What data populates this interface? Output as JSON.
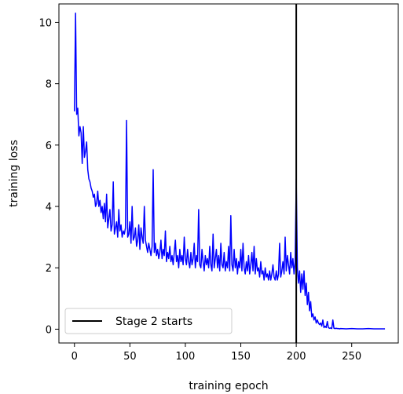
{
  "chart_data": {
    "type": "line",
    "xlabel": "training epoch",
    "ylabel": "training loss",
    "xlim": [
      -14,
      292
    ],
    "ylim": [
      -0.45,
      10.6
    ],
    "xticks": [
      0,
      50,
      100,
      150,
      200,
      250
    ],
    "yticks": [
      0,
      2,
      4,
      6,
      8,
      10
    ],
    "grid": false,
    "legend": {
      "placement": "lower-left",
      "entries": [
        {
          "label": "Stage 2 starts",
          "color": "#000000",
          "style": "line"
        }
      ]
    },
    "vertical_line": {
      "x": 200,
      "label": "Stage 2 starts",
      "color": "#000000"
    },
    "series": [
      {
        "color": "#0000ff",
        "points": [
          [
            0,
            7.1
          ],
          [
            1,
            10.3
          ],
          [
            2,
            7.0
          ],
          [
            3,
            7.2
          ],
          [
            4,
            6.3
          ],
          [
            5,
            6.6
          ],
          [
            6,
            6.4
          ],
          [
            7,
            5.4
          ],
          [
            8,
            6.6
          ],
          [
            9,
            5.6
          ],
          [
            10,
            5.8
          ],
          [
            11,
            6.1
          ],
          [
            12,
            5.2
          ],
          [
            13,
            4.9
          ],
          [
            14,
            4.8
          ],
          [
            15,
            4.6
          ],
          [
            16,
            4.5
          ],
          [
            17,
            4.3
          ],
          [
            18,
            4.4
          ],
          [
            19,
            4.0
          ],
          [
            20,
            4.1
          ],
          [
            21,
            4.5
          ],
          [
            22,
            4.0
          ],
          [
            23,
            4.2
          ],
          [
            24,
            3.8
          ],
          [
            25,
            4.0
          ],
          [
            26,
            3.6
          ],
          [
            27,
            4.1
          ],
          [
            28,
            3.5
          ],
          [
            29,
            4.4
          ],
          [
            30,
            3.3
          ],
          [
            31,
            3.6
          ],
          [
            32,
            3.9
          ],
          [
            33,
            3.2
          ],
          [
            34,
            3.4
          ],
          [
            35,
            4.8
          ],
          [
            36,
            3.1
          ],
          [
            37,
            3.3
          ],
          [
            38,
            3.5
          ],
          [
            39,
            3.0
          ],
          [
            40,
            3.9
          ],
          [
            41,
            3.2
          ],
          [
            42,
            3.4
          ],
          [
            43,
            3.0
          ],
          [
            44,
            3.2
          ],
          [
            45,
            3.1
          ],
          [
            46,
            3.3
          ],
          [
            47,
            6.8
          ],
          [
            48,
            3.0
          ],
          [
            49,
            3.1
          ],
          [
            50,
            3.5
          ],
          [
            51,
            2.8
          ],
          [
            52,
            4.0
          ],
          [
            53,
            2.9
          ],
          [
            54,
            3.0
          ],
          [
            55,
            3.3
          ],
          [
            56,
            2.7
          ],
          [
            57,
            2.9
          ],
          [
            58,
            3.4
          ],
          [
            59,
            2.6
          ],
          [
            60,
            3.3
          ],
          [
            61,
            3.0
          ],
          [
            62,
            2.8
          ],
          [
            63,
            4.0
          ],
          [
            64,
            2.9
          ],
          [
            65,
            2.7
          ],
          [
            66,
            2.5
          ],
          [
            67,
            2.8
          ],
          [
            68,
            2.6
          ],
          [
            69,
            2.4
          ],
          [
            70,
            2.7
          ],
          [
            71,
            5.2
          ],
          [
            72,
            2.5
          ],
          [
            73,
            2.8
          ],
          [
            74,
            2.4
          ],
          [
            75,
            2.6
          ],
          [
            76,
            2.3
          ],
          [
            77,
            2.5
          ],
          [
            78,
            2.9
          ],
          [
            79,
            2.3
          ],
          [
            80,
            2.6
          ],
          [
            81,
            2.4
          ],
          [
            82,
            3.2
          ],
          [
            83,
            2.2
          ],
          [
            84,
            2.5
          ],
          [
            85,
            2.3
          ],
          [
            86,
            2.7
          ],
          [
            87,
            2.2
          ],
          [
            88,
            2.4
          ],
          [
            89,
            2.1
          ],
          [
            90,
            2.5
          ],
          [
            91,
            2.9
          ],
          [
            92,
            2.2
          ],
          [
            93,
            2.4
          ],
          [
            94,
            2.0
          ],
          [
            95,
            2.6
          ],
          [
            96,
            2.2
          ],
          [
            97,
            2.4
          ],
          [
            98,
            2.1
          ],
          [
            99,
            3.0
          ],
          [
            100,
            2.3
          ],
          [
            101,
            2.1
          ],
          [
            102,
            2.6
          ],
          [
            103,
            2.2
          ],
          [
            104,
            2.0
          ],
          [
            105,
            2.5
          ],
          [
            106,
            2.1
          ],
          [
            107,
            2.3
          ],
          [
            108,
            2.8
          ],
          [
            109,
            2.0
          ],
          [
            110,
            2.4
          ],
          [
            111,
            2.2
          ],
          [
            112,
            3.9
          ],
          [
            113,
            2.1
          ],
          [
            114,
            2.0
          ],
          [
            115,
            2.6
          ],
          [
            116,
            2.2
          ],
          [
            117,
            1.9
          ],
          [
            118,
            2.4
          ],
          [
            119,
            2.1
          ],
          [
            120,
            2.3
          ],
          [
            121,
            2.0
          ],
          [
            122,
            2.7
          ],
          [
            123,
            2.1
          ],
          [
            124,
            1.9
          ],
          [
            125,
            3.1
          ],
          [
            126,
            2.0
          ],
          [
            127,
            2.3
          ],
          [
            128,
            2.6
          ],
          [
            129,
            2.0
          ],
          [
            130,
            2.4
          ],
          [
            131,
            1.9
          ],
          [
            132,
            2.8
          ],
          [
            133,
            2.1
          ],
          [
            134,
            2.0
          ],
          [
            135,
            2.5
          ],
          [
            136,
            1.9
          ],
          [
            137,
            2.2
          ],
          [
            138,
            2.0
          ],
          [
            139,
            2.7
          ],
          [
            140,
            1.9
          ],
          [
            141,
            3.7
          ],
          [
            142,
            2.1
          ],
          [
            143,
            1.9
          ],
          [
            144,
            2.6
          ],
          [
            145,
            2.0
          ],
          [
            146,
            2.3
          ],
          [
            147,
            1.8
          ],
          [
            148,
            2.2
          ],
          [
            149,
            2.0
          ],
          [
            150,
            2.6
          ],
          [
            151,
            1.9
          ],
          [
            152,
            2.8
          ],
          [
            153,
            2.0
          ],
          [
            154,
            1.8
          ],
          [
            155,
            2.2
          ],
          [
            156,
            1.9
          ],
          [
            157,
            2.4
          ],
          [
            158,
            1.8
          ],
          [
            159,
            2.1
          ],
          [
            160,
            2.5
          ],
          [
            161,
            1.9
          ],
          [
            162,
            2.7
          ],
          [
            163,
            1.8
          ],
          [
            164,
            2.3
          ],
          [
            165,
            1.9
          ],
          [
            166,
            2.0
          ],
          [
            167,
            1.7
          ],
          [
            168,
            2.2
          ],
          [
            169,
            1.8
          ],
          [
            170,
            1.9
          ],
          [
            171,
            1.6
          ],
          [
            172,
            2.0
          ],
          [
            173,
            1.7
          ],
          [
            174,
            1.8
          ],
          [
            175,
            1.6
          ],
          [
            176,
            1.9
          ],
          [
            177,
            1.6
          ],
          [
            178,
            1.8
          ],
          [
            179,
            2.1
          ],
          [
            180,
            1.7
          ],
          [
            181,
            1.6
          ],
          [
            182,
            1.9
          ],
          [
            183,
            1.6
          ],
          [
            184,
            1.8
          ],
          [
            185,
            2.8
          ],
          [
            186,
            1.7
          ],
          [
            187,
            1.9
          ],
          [
            188,
            2.2
          ],
          [
            189,
            1.8
          ],
          [
            190,
            3.0
          ],
          [
            191,
            1.9
          ],
          [
            192,
            2.4
          ],
          [
            193,
            2.1
          ],
          [
            194,
            1.8
          ],
          [
            195,
            2.5
          ],
          [
            196,
            2.0
          ],
          [
            197,
            2.3
          ],
          [
            198,
            1.8
          ],
          [
            199,
            2.2
          ],
          [
            200,
            4.9
          ],
          [
            201,
            2.0
          ],
          [
            202,
            1.5
          ],
          [
            203,
            1.9
          ],
          [
            204,
            1.2
          ],
          [
            205,
            1.8
          ],
          [
            206,
            1.3
          ],
          [
            207,
            1.9
          ],
          [
            208,
            1.1
          ],
          [
            209,
            1.5
          ],
          [
            210,
            0.8
          ],
          [
            211,
            1.2
          ],
          [
            212,
            0.6
          ],
          [
            213,
            0.9
          ],
          [
            214,
            0.4
          ],
          [
            215,
            0.5
          ],
          [
            216,
            0.3
          ],
          [
            217,
            0.4
          ],
          [
            218,
            0.2
          ],
          [
            219,
            0.3
          ],
          [
            220,
            0.2
          ],
          [
            221,
            0.15
          ],
          [
            222,
            0.2
          ],
          [
            223,
            0.1
          ],
          [
            224,
            0.3
          ],
          [
            225,
            0.05
          ],
          [
            226,
            0.1
          ],
          [
            227,
            0.05
          ],
          [
            228,
            0.25
          ],
          [
            229,
            0.05
          ],
          [
            230,
            0.03
          ],
          [
            231,
            0.04
          ],
          [
            232,
            0.02
          ],
          [
            233,
            0.3
          ],
          [
            234,
            0.03
          ],
          [
            235,
            0.02
          ],
          [
            236,
            0.03
          ],
          [
            237,
            0.02
          ],
          [
            238,
            0.02
          ],
          [
            239,
            0.01
          ],
          [
            240,
            0.02
          ],
          [
            245,
            0.01
          ],
          [
            250,
            0.02
          ],
          [
            255,
            0.01
          ],
          [
            260,
            0.01
          ],
          [
            265,
            0.02
          ],
          [
            270,
            0.01
          ],
          [
            275,
            0.01
          ],
          [
            280,
            0.01
          ]
        ]
      }
    ]
  }
}
